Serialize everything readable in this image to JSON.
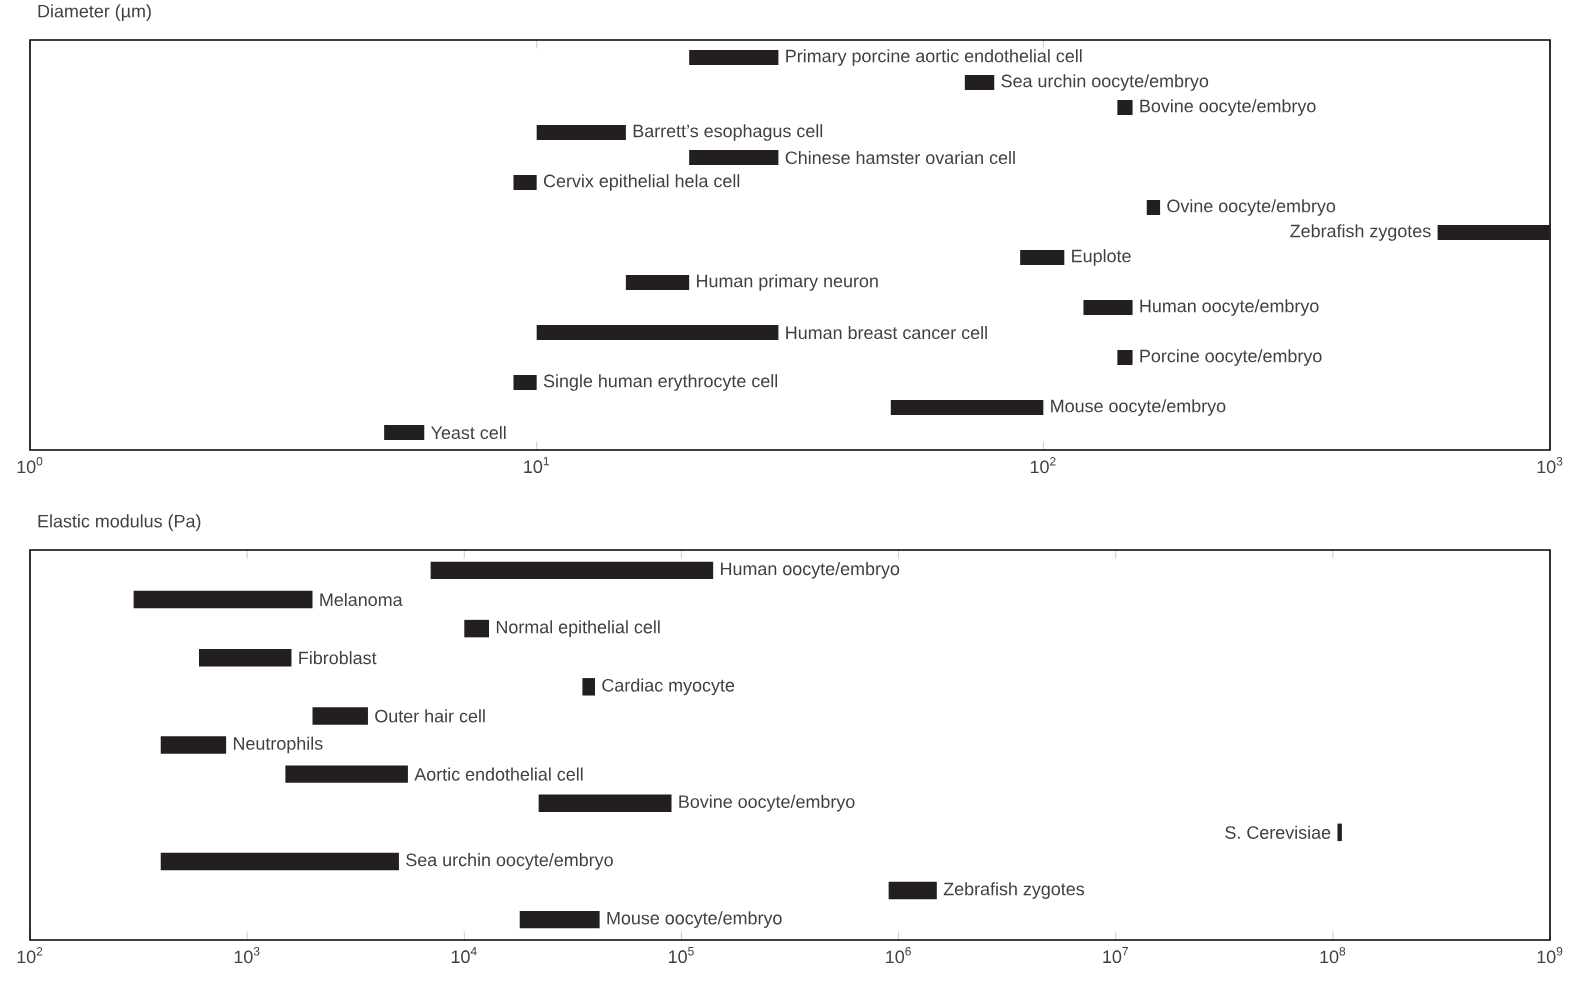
{
  "chart_data": [
    {
      "type": "bar",
      "orientation": "horizontal",
      "log": "x",
      "title": "Diameter (µm)",
      "color": "#231f20",
      "categories": [
        null,
        null,
        null,
        null,
        null,
        null,
        null,
        null,
        null,
        null,
        null,
        null,
        null,
        null,
        null,
        null
      ],
      "base": [
        20,
        70,
        140,
        10,
        20,
        9,
        160,
        600,
        90,
        15,
        120,
        10,
        140,
        9,
        50,
        5
      ],
      "values": [
        10,
        10,
        10,
        5,
        10,
        1,
        10,
        400,
        20,
        5,
        30,
        20,
        10,
        1,
        50,
        1
      ],
      "value_labels": [
        "Primary porcine aortic endothelial cell",
        "Sea urchin oocyte/embryo",
        "Bovine oocyte/embryo",
        "Barrett’s esophagus cell",
        "Chinese hamster ovarian cell",
        "Cervix epithelial hela cell",
        "Ovine oocyte/embryo",
        "Zebrafish zygotes",
        "Euplote",
        "Human primary neuron",
        "Human oocyte/embryo",
        "Human breast cancer cell",
        "Porcine oocyte/embryo",
        "Single human erythrocyte cell",
        "Mouse oocyte/embryo",
        "Yeast cell"
      ],
      "xlim": [
        1,
        1000
      ],
      "xticks": [
        {
          "value": 1,
          "label": "10$^{0}$"
        },
        {
          "value": 10,
          "label": "10$^{1}$"
        },
        {
          "value": 100,
          "label": "10$^{2}$"
        },
        {
          "value": 1000,
          "label": "10$^{3}$"
        }
      ]
    },
    {
      "type": "bar",
      "orientation": "horizontal",
      "log": "x",
      "title": "Elastic modulus (Pa)",
      "color": "#231f20",
      "categories": [
        null,
        null,
        null,
        null,
        null,
        null,
        null,
        null,
        null,
        null,
        null,
        null,
        null
      ],
      "base": [
        7000,
        300,
        10000,
        600,
        35000,
        2000,
        400,
        1500,
        22000,
        105000000,
        400,
        900000,
        18000
      ],
      "values": [
        133000,
        1700,
        3000,
        1000,
        5000,
        1600,
        400,
        4000,
        68000,
        5000000,
        4600,
        600000,
        24000
      ],
      "value_labels": [
        "Human oocyte/embryo",
        "Melanoma",
        "Normal epithelial cell",
        "Fibroblast",
        "Cardiac myocyte",
        "Outer hair cell",
        "Neutrophils",
        "Aortic endothelial cell",
        "Bovine oocyte/embryo",
        "S. Cerevisiae",
        "Sea urchin oocyte/embryo",
        "Zebrafish zygotes",
        "Mouse oocyte/embryo"
      ],
      "xlim": [
        100,
        1000000000
      ],
      "xticks": [
        {
          "value": 100,
          "label": "10$^{2}$"
        },
        {
          "value": 1000,
          "label": "10$^{3}$"
        },
        {
          "value": 10000,
          "label": "10$^{4}$"
        },
        {
          "value": 100000,
          "label": "10$^{5}$"
        },
        {
          "value": 1000000,
          "label": "10$^{6}$"
        },
        {
          "value": 10000000,
          "label": "10$^{7}$"
        },
        {
          "value": 100000000,
          "label": "10$^{8}$"
        },
        {
          "value": 1000000000,
          "label": "10$^{9}$"
        }
      ]
    }
  ]
}
